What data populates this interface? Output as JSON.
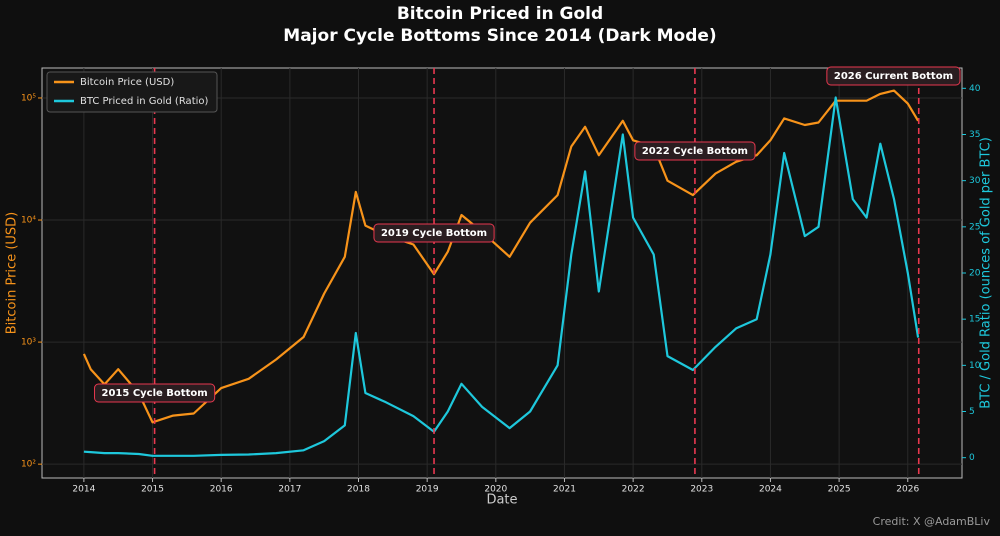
{
  "chart_data": {
    "type": "line",
    "title": "Bitcoin Priced in Gold",
    "subtitle": "Major Cycle Bottoms Since 2014 (Dark Mode)",
    "x_label": "Date",
    "y_label": "Bitcoin Price (USD)",
    "y2_label": "BTC / Gold Ratio (ounces of Gold per BTC)",
    "credit": "Credit: X @AdamBLiv",
    "log_y": true,
    "grid": true,
    "legend": "upper left",
    "xlim": [
      2013.39,
      2026.79
    ],
    "xticks": [
      2014,
      2015,
      2016,
      2017,
      2018,
      2019,
      2020,
      2021,
      2022,
      2023,
      2024,
      2025,
      2026
    ],
    "ylim": [
      77,
      176000
    ],
    "yticks": [
      {
        "value": 100,
        "label": "10²"
      },
      {
        "value": 1000,
        "label": "10³"
      },
      {
        "value": 10000,
        "label": "10⁴"
      },
      {
        "value": 100000,
        "label": "10⁵"
      }
    ],
    "y2lim": [
      -2.2,
      42.2
    ],
    "y2ticks": [
      0,
      5,
      10,
      15,
      20,
      25,
      30,
      35,
      40
    ],
    "x": [
      2014.0,
      2014.1,
      2014.3,
      2014.5,
      2014.8,
      2015.0,
      2015.3,
      2015.6,
      2016.0,
      2016.4,
      2016.8,
      2017.2,
      2017.5,
      2017.8,
      2017.96,
      2018.1,
      2018.4,
      2018.8,
      2019.1,
      2019.3,
      2019.5,
      2019.8,
      2020.2,
      2020.5,
      2020.9,
      2021.1,
      2021.3,
      2021.5,
      2021.85,
      2022.0,
      2022.3,
      2022.5,
      2022.87,
      2023.2,
      2023.5,
      2023.8,
      2024.0,
      2024.2,
      2024.5,
      2024.7,
      2024.95,
      2025.2,
      2025.4,
      2025.6,
      2025.8,
      2026.0,
      2026.15
    ],
    "series": [
      {
        "name": "Bitcoin Price (USD)",
        "color": "#f7931a",
        "axis": "y",
        "values": [
          800,
          600,
          450,
          600,
          380,
          220,
          250,
          260,
          420,
          500,
          720,
          1100,
          2500,
          5000,
          17000,
          9000,
          7500,
          6300,
          3600,
          5500,
          11000,
          8000,
          5000,
          9500,
          16000,
          40000,
          58000,
          34000,
          65000,
          45000,
          40000,
          21000,
          16000,
          24000,
          30000,
          34000,
          45000,
          68000,
          60000,
          63000,
          95000,
          95000,
          95000,
          108000,
          115000,
          90000,
          65000
        ]
      },
      {
        "name": "BTC Priced in Gold (Ratio)",
        "color": "#1ec8dc",
        "axis": "y2",
        "values": [
          0.65,
          0.6,
          0.5,
          0.5,
          0.4,
          0.2,
          0.2,
          0.2,
          0.3,
          0.35,
          0.5,
          0.8,
          1.8,
          3.5,
          13.5,
          7,
          6,
          4.5,
          2.8,
          5,
          8,
          5.5,
          3.2,
          5,
          10,
          22,
          31,
          18,
          35,
          26,
          22,
          11,
          9.5,
          12,
          14,
          15,
          22,
          33,
          24,
          25,
          39,
          28,
          26,
          34,
          28,
          20,
          13
        ]
      }
    ],
    "annotations": [
      {
        "x": 2015.03,
        "text": "2015 Cycle Bottom"
      },
      {
        "x": 2019.1,
        "text": "2019 Cycle Bottom"
      },
      {
        "x": 2022.9,
        "text": "2022 Cycle Bottom"
      },
      {
        "x": 2026.16,
        "text": "2026 Current Bottom"
      }
    ]
  }
}
